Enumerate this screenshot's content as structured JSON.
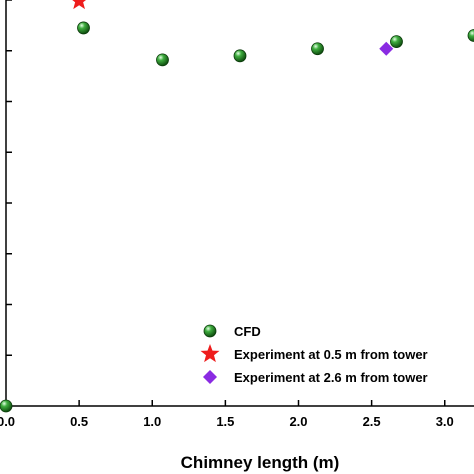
{
  "chart_data": {
    "type": "scatter",
    "title": "",
    "xlabel": "Chimney length (m)",
    "ylabel": "",
    "xlim": [
      0.0,
      3.2
    ],
    "x_ticks": [
      0.0,
      0.5,
      1.0,
      1.5,
      2.0,
      2.5,
      3.0
    ],
    "x_tick_labels": [
      "0.0",
      "0.5",
      "1.0",
      "1.5",
      "2.0",
      "2.5",
      "3.0"
    ],
    "ylim": [
      0.0,
      8.0
    ],
    "y_ticks": [
      0,
      1,
      2,
      3,
      4,
      5,
      6,
      7,
      8
    ],
    "grid": false,
    "legend_position": "bottom-right",
    "series": [
      {
        "name": "CFD",
        "marker": "sphere",
        "color": "#1e8a1e",
        "points": [
          {
            "x": 0.0,
            "y": 0.0
          },
          {
            "x": 0.53,
            "y": 7.45
          },
          {
            "x": 1.07,
            "y": 6.82
          },
          {
            "x": 1.6,
            "y": 6.9
          },
          {
            "x": 2.13,
            "y": 7.04
          },
          {
            "x": 2.67,
            "y": 7.18
          },
          {
            "x": 3.2,
            "y": 7.3
          }
        ]
      },
      {
        "name": "Experiment at 0.5 m from tower",
        "marker": "star",
        "color": "#ee1c1c",
        "points": [
          {
            "x": 0.5,
            "y": 7.98
          }
        ]
      },
      {
        "name": "Experiment at 2.6 m from tower",
        "marker": "diamond",
        "color": "#8a2be2",
        "points": [
          {
            "x": 2.6,
            "y": 7.04
          }
        ]
      }
    ]
  }
}
